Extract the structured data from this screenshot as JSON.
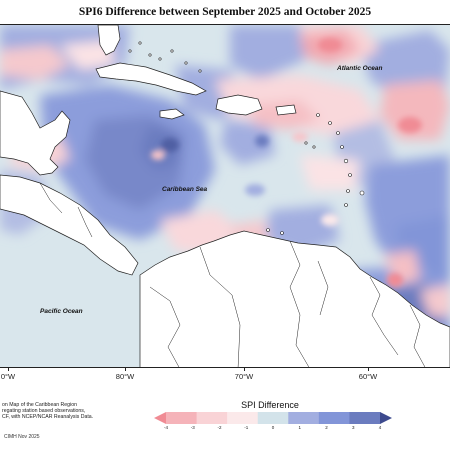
{
  "title": "SPI6 Difference between September 2025 and October 2025",
  "labels": {
    "atlantic": "Atlantic Ocean",
    "caribbean": "Caribbean Sea",
    "pacific": "Pacific Ocean"
  },
  "x_axis": {
    "ticks": [
      "0°W",
      "80°W",
      "70°W",
      "60°W"
    ]
  },
  "source_note": [
    "on Map of the Caribbean Region",
    "regating station based observations,",
    "CF, with NCEP/NCAR Reanalysis Data."
  ],
  "credit": "CIMH Nov 2025",
  "legend": {
    "title": "SPI Difference",
    "ticks": [
      "-4",
      "-3",
      "-2",
      "-1",
      "0",
      "1",
      "2",
      "3",
      "4"
    ],
    "colors": [
      "#f08b94",
      "#f5b3b9",
      "#f9d3d6",
      "#fbe9ea",
      "#d3e3ea",
      "#a2aee0",
      "#8295d8",
      "#6b7cbf",
      "#3d4a8e"
    ]
  },
  "colors": {
    "land": "#ffffff",
    "coast": "#222222",
    "strong_wet": "#3d4a8e",
    "wet": "#8295d8",
    "light_wet": "#a2aee0",
    "neutral": "#d3e3ea",
    "light_dry": "#fbe9ea",
    "dry": "#f9d3d6",
    "strong_dry": "#f08b94"
  }
}
